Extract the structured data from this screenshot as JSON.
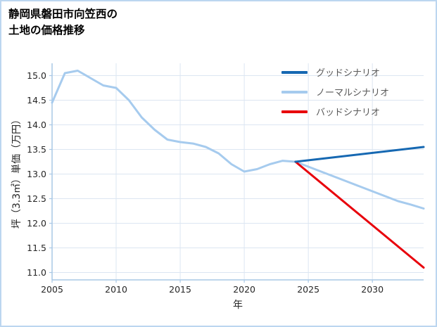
{
  "chart_data": {
    "type": "line",
    "title": "静岡県磐田市向笠西の土地の価格推移",
    "title_lines": [
      "静岡県磐田市向笠西の",
      "土地の価格推移"
    ],
    "xlabel": "年",
    "ylabel": "坪（3.3㎡）単価（万円）",
    "x_range": [
      2005,
      2034
    ],
    "y_range": [
      10.85,
      15.25
    ],
    "xticks": [
      2005,
      2010,
      2015,
      2020,
      2025,
      2030
    ],
    "xtick_labels": [
      "2005",
      "2010",
      "2015",
      "2020",
      "2025",
      "2030"
    ],
    "yticks": [
      11.0,
      11.5,
      12.0,
      12.5,
      13.0,
      13.5,
      14.0,
      14.5,
      15.0
    ],
    "ytick_labels": [
      "11.0",
      "11.5",
      "12.0",
      "12.5",
      "13.0",
      "13.5",
      "14.0",
      "14.5",
      "15.0"
    ],
    "grid": true,
    "legend_position": "upper right",
    "colors": {
      "grid": "#dce6f2",
      "spine": "#a9c8e6",
      "border": "#bcd6f0",
      "tick_label": "#262626",
      "legend_text": "#595959",
      "good": "#1668b2",
      "normal": "#a6cbee",
      "bad": "#e8000b"
    },
    "series": [
      {
        "id": "good",
        "name": "グッドシナリオ",
        "color": "#1668b2",
        "z": 3,
        "x": [
          2024,
          2034
        ],
        "y": [
          13.25,
          13.55
        ]
      },
      {
        "id": "normal",
        "name": "ノーマルシナリオ",
        "color": "#a6cbee",
        "z": 1,
        "x": [
          2005,
          2006,
          2007,
          2008,
          2009,
          2010,
          2011,
          2012,
          2013,
          2014,
          2015,
          2016,
          2017,
          2018,
          2019,
          2020,
          2021,
          2022,
          2023,
          2024,
          2025,
          2026,
          2027,
          2028,
          2029,
          2030,
          2031,
          2032,
          2033,
          2034
        ],
        "y": [
          14.45,
          15.05,
          15.1,
          14.95,
          14.8,
          14.75,
          14.5,
          14.15,
          13.9,
          13.7,
          13.65,
          13.62,
          13.55,
          13.42,
          13.2,
          13.05,
          13.1,
          13.2,
          13.27,
          13.25,
          13.15,
          13.05,
          12.95,
          12.85,
          12.75,
          12.65,
          12.55,
          12.45,
          12.38,
          12.3
        ]
      },
      {
        "id": "bad",
        "name": "バッドシナリオ",
        "color": "#e8000b",
        "z": 2,
        "x": [
          2024,
          2034
        ],
        "y": [
          13.25,
          11.1
        ]
      }
    ]
  }
}
